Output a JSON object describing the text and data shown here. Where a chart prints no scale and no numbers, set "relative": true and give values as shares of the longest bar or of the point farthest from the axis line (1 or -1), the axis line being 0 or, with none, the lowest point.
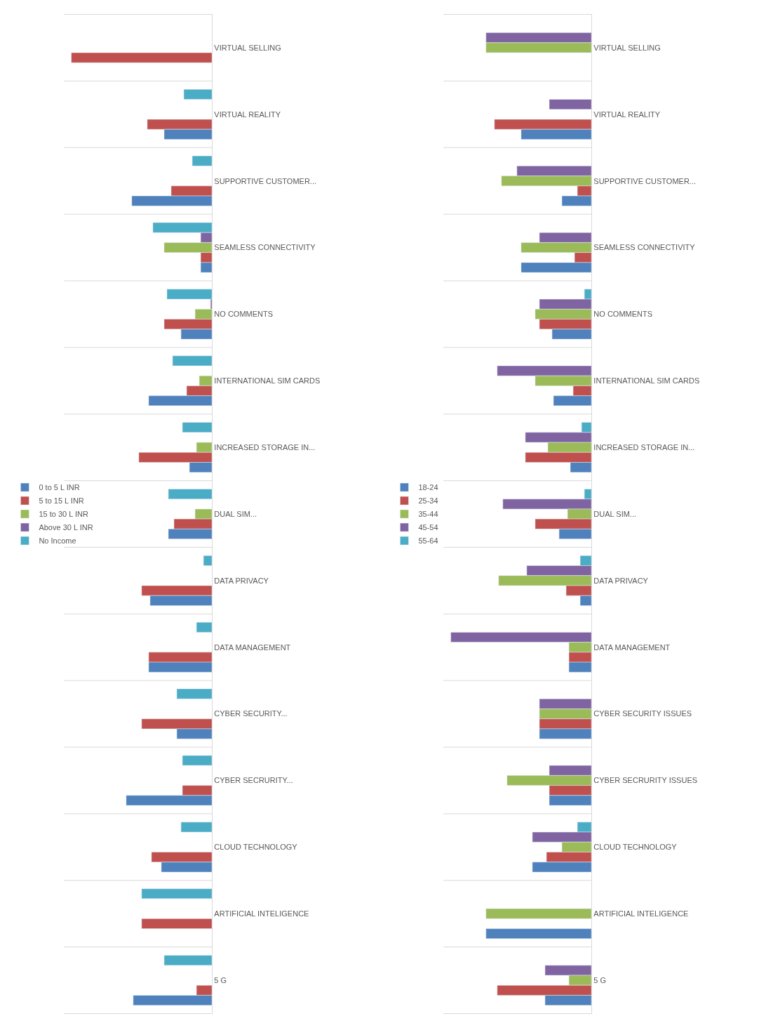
{
  "chart_data": [
    {
      "type": "bar",
      "orientation": "horizontal",
      "relative": true,
      "grid": "y",
      "legend": "left",
      "categories": [
        "VIRTUAL SELLING",
        "VIRTUAL REALITY",
        "SUPPORTIVE CUSTOMER...",
        "SEAMLESS CONNECTIVITY",
        "NO COMMENTS",
        "INTERNATIONAL SIM CARDS",
        "INCREASED STORAGE IN...",
        "DUAL SIM...",
        "DATA PRIVACY",
        "DATA MANAGEMENT",
        "CYBER SECURITY...",
        "CYBER SECRURITY...",
        "CLOUD TECHNOLOGY",
        "ARTIFICIAL INTELIGENCE",
        "5 G"
      ],
      "series": [
        {
          "name": "0 to 5 L INR",
          "color": "#4f81bd",
          "values": [
            null,
            0.34,
            0.57,
            0.08,
            0.22,
            0.45,
            0.16,
            0.31,
            0.44,
            0.45,
            0.25,
            0.61,
            0.36,
            null,
            0.56
          ]
        },
        {
          "name": "5 to 15 L INR",
          "color": "#c0504d",
          "values": [
            1.0,
            0.46,
            0.29,
            0.08,
            0.34,
            0.18,
            0.52,
            0.27,
            0.5,
            0.45,
            0.5,
            0.21,
            0.43,
            0.5,
            0.11
          ]
        },
        {
          "name": "15 to 30 L INR",
          "color": "#9bbb59",
          "values": [
            null,
            null,
            null,
            0.34,
            0.12,
            0.09,
            0.11,
            0.12,
            null,
            null,
            null,
            null,
            null,
            null,
            null
          ]
        },
        {
          "name": "Above 30 L INR",
          "color": "#8064a2",
          "values": [
            null,
            null,
            null,
            0.08,
            0.01,
            null,
            null,
            null,
            null,
            null,
            null,
            null,
            null,
            null,
            null
          ]
        },
        {
          "name": "No Income",
          "color": "#4bacc6",
          "values": [
            null,
            0.2,
            0.14,
            0.42,
            0.32,
            0.28,
            0.21,
            0.31,
            0.06,
            0.11,
            0.25,
            0.21,
            0.22,
            0.5,
            0.34
          ]
        }
      ]
    },
    {
      "type": "bar",
      "orientation": "horizontal",
      "relative": true,
      "grid": "y",
      "legend": "left",
      "categories": [
        "VIRTUAL SELLING",
        "VIRTUAL REALITY",
        "SUPPORTIVE CUSTOMER...",
        "SEAMLESS CONNECTIVITY",
        "NO COMMENTS",
        "INTERNATIONAL SIM CARDS",
        "INCREASED STORAGE IN...",
        "DUAL SIM...",
        "DATA PRIVACY",
        "DATA MANAGEMENT",
        "CYBER SECURITY ISSUES",
        "CYBER SECRURITY ISSUES",
        "CLOUD TECHNOLOGY",
        "ARTIFICIAL INTELIGENCE",
        "5 G"
      ],
      "series": [
        {
          "name": "18-24",
          "color": "#4f81bd",
          "values": [
            null,
            0.5,
            0.21,
            0.5,
            0.28,
            0.27,
            0.15,
            0.23,
            0.08,
            0.16,
            0.37,
            0.3,
            0.42,
            0.75,
            0.33
          ]
        },
        {
          "name": "25-34",
          "color": "#c0504d",
          "values": [
            null,
            0.69,
            0.1,
            0.12,
            0.37,
            0.13,
            0.47,
            0.4,
            0.18,
            0.16,
            0.37,
            0.3,
            0.32,
            null,
            0.67
          ]
        },
        {
          "name": "35-44",
          "color": "#9bbb59",
          "values": [
            0.75,
            null,
            0.64,
            0.5,
            0.4,
            0.4,
            0.31,
            0.17,
            0.66,
            0.16,
            0.37,
            0.6,
            0.21,
            0.75,
            0.16
          ]
        },
        {
          "name": "45-54",
          "color": "#8064a2",
          "values": [
            0.75,
            0.3,
            0.53,
            0.37,
            0.37,
            0.67,
            0.47,
            0.63,
            0.46,
            1.0,
            0.37,
            0.3,
            0.42,
            null,
            0.33
          ]
        },
        {
          "name": "55-64",
          "color": "#4bacc6",
          "values": [
            null,
            null,
            null,
            null,
            0.05,
            null,
            0.07,
            0.05,
            0.08,
            null,
            null,
            null,
            0.1,
            null,
            null
          ]
        }
      ]
    }
  ]
}
